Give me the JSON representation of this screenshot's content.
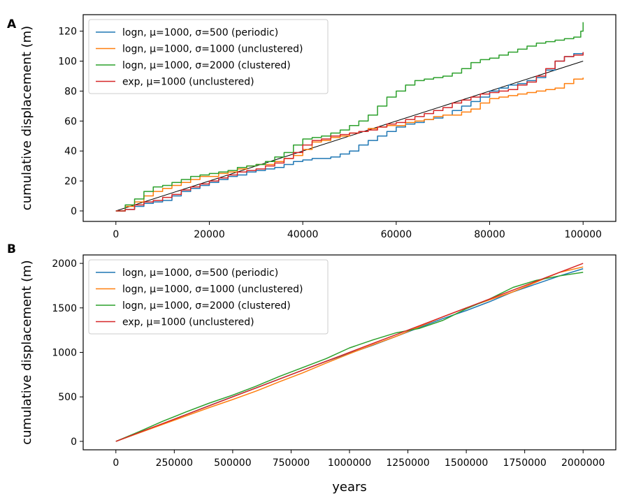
{
  "chart_data": [
    {
      "panel_label": "A",
      "type": "line",
      "title": "",
      "xlabel": "",
      "ylabel": "cumulative displacement (m)",
      "xlim": [
        -7000,
        107000
      ],
      "ylim": [
        -7,
        131
      ],
      "x_ticks": [
        0,
        20000,
        40000,
        60000,
        80000,
        100000
      ],
      "y_ticks": [
        0,
        20,
        40,
        60,
        80,
        100,
        120
      ],
      "grid": false,
      "legend_position": "top-left",
      "reference_line": {
        "x": [
          0,
          100000
        ],
        "y": [
          0,
          100
        ],
        "color": "#000000"
      },
      "series": [
        {
          "name": "logn, μ=1000, σ=500 (periodic)",
          "color": "#1f77b4",
          "step": true,
          "x": [
            0,
            2000,
            4000,
            6000,
            8000,
            10000,
            12000,
            14000,
            16000,
            18000,
            20000,
            22000,
            24000,
            26000,
            28000,
            30000,
            32000,
            34000,
            36000,
            38000,
            40000,
            42000,
            44000,
            46000,
            48000,
            50000,
            52000,
            54000,
            56000,
            58000,
            60000,
            62000,
            64000,
            66000,
            68000,
            70000,
            72000,
            74000,
            76000,
            78000,
            80000,
            82000,
            84000,
            86000,
            88000,
            90000,
            92000,
            94000,
            96000,
            98000,
            100000
          ],
          "y": [
            0,
            1,
            3,
            5,
            6,
            7,
            10,
            13,
            15,
            17,
            19,
            21,
            23,
            24,
            26,
            27,
            28,
            29,
            31,
            33,
            34,
            35,
            35,
            36,
            38,
            40,
            44,
            47,
            50,
            53,
            56,
            58,
            59,
            61,
            62,
            64,
            67,
            70,
            73,
            76,
            80,
            82,
            84,
            85,
            87,
            89,
            94,
            100,
            103,
            105,
            106
          ]
        },
        {
          "name": "logn, μ=1000, σ=1000 (unclustered)",
          "color": "#ff7f0e",
          "step": true,
          "x": [
            0,
            2000,
            4000,
            6000,
            8000,
            10000,
            12000,
            14000,
            16000,
            18000,
            20000,
            22000,
            24000,
            26000,
            28000,
            30000,
            32000,
            34000,
            36000,
            38000,
            40000,
            42000,
            44000,
            46000,
            48000,
            50000,
            52000,
            54000,
            56000,
            58000,
            60000,
            62000,
            64000,
            66000,
            68000,
            70000,
            72000,
            74000,
            76000,
            78000,
            80000,
            82000,
            84000,
            86000,
            88000,
            90000,
            92000,
            94000,
            96000,
            98000,
            100000
          ],
          "y": [
            0,
            3,
            6,
            10,
            13,
            15,
            17,
            19,
            21,
            23,
            23,
            25,
            26,
            28,
            30,
            31,
            31,
            33,
            35,
            37,
            41,
            46,
            47,
            49,
            50,
            52,
            53,
            55,
            56,
            57,
            57,
            59,
            60,
            61,
            63,
            64,
            64,
            66,
            68,
            72,
            75,
            76,
            77,
            78,
            79,
            80,
            81,
            82,
            85,
            88,
            89
          ]
        },
        {
          "name": "logn, μ=1000, σ=2000 (clustered)",
          "color": "#2ca02c",
          "step": true,
          "x": [
            0,
            2000,
            4000,
            6000,
            8000,
            10000,
            12000,
            14000,
            16000,
            18000,
            20000,
            22000,
            24000,
            26000,
            28000,
            30000,
            32000,
            34000,
            36000,
            38000,
            40000,
            42000,
            44000,
            46000,
            48000,
            50000,
            52000,
            54000,
            56000,
            58000,
            60000,
            62000,
            64000,
            66000,
            68000,
            70000,
            72000,
            74000,
            76000,
            78000,
            80000,
            82000,
            84000,
            86000,
            88000,
            90000,
            92000,
            94000,
            96000,
            98000,
            99500,
            100000
          ],
          "y": [
            0,
            4,
            8,
            13,
            16,
            17,
            19,
            21,
            23,
            24,
            25,
            26,
            27,
            29,
            30,
            31,
            33,
            36,
            39,
            44,
            48,
            49,
            50,
            52,
            54,
            57,
            60,
            64,
            70,
            76,
            80,
            84,
            87,
            88,
            89,
            90,
            92,
            95,
            99,
            101,
            102,
            104,
            106,
            108,
            110,
            112,
            113,
            114,
            115,
            116,
            120,
            126
          ]
        },
        {
          "name": "exp, μ=1000 (unclustered)",
          "color": "#d62728",
          "step": true,
          "x": [
            0,
            2000,
            4000,
            6000,
            8000,
            10000,
            12000,
            14000,
            16000,
            18000,
            20000,
            22000,
            24000,
            26000,
            28000,
            30000,
            32000,
            34000,
            36000,
            38000,
            40000,
            42000,
            44000,
            46000,
            48000,
            50000,
            52000,
            54000,
            56000,
            58000,
            60000,
            62000,
            64000,
            66000,
            68000,
            70000,
            72000,
            74000,
            76000,
            78000,
            80000,
            82000,
            84000,
            86000,
            88000,
            90000,
            92000,
            94000,
            96000,
            98000,
            100000
          ],
          "y": [
            0,
            1,
            4,
            6,
            7,
            9,
            11,
            14,
            16,
            18,
            20,
            22,
            24,
            26,
            27,
            28,
            30,
            32,
            35,
            39,
            44,
            47,
            48,
            50,
            51,
            52,
            53,
            54,
            56,
            58,
            59,
            61,
            63,
            65,
            67,
            69,
            72,
            74,
            76,
            78,
            79,
            80,
            81,
            84,
            86,
            90,
            95,
            100,
            103,
            104,
            106
          ]
        }
      ]
    },
    {
      "panel_label": "B",
      "type": "line",
      "title": "",
      "xlabel": "years",
      "ylabel": "cumulative displacement (m)",
      "xlim": [
        -140000,
        2140000
      ],
      "ylim": [
        -95,
        2095
      ],
      "x_ticks": [
        0,
        250000,
        500000,
        750000,
        1000000,
        1250000,
        1500000,
        1750000,
        2000000
      ],
      "y_ticks": [
        0,
        500,
        1000,
        1500,
        2000
      ],
      "grid": false,
      "legend_position": "top-left",
      "series": [
        {
          "name": "logn, μ=1000, σ=500 (periodic)",
          "color": "#1f77b4",
          "step": false,
          "x": [
            0,
            100000,
            200000,
            300000,
            400000,
            500000,
            600000,
            700000,
            800000,
            900000,
            1000000,
            1100000,
            1200000,
            1300000,
            1400000,
            1500000,
            1600000,
            1700000,
            1800000,
            1900000,
            2000000
          ],
          "y": [
            0,
            98,
            198,
            300,
            402,
            502,
            600,
            700,
            800,
            900,
            990,
            1080,
            1180,
            1280,
            1380,
            1470,
            1570,
            1680,
            1770,
            1860,
            1940
          ]
        },
        {
          "name": "logn, μ=1000, σ=1000 (unclustered)",
          "color": "#ff7f0e",
          "step": false,
          "x": [
            0,
            100000,
            200000,
            300000,
            400000,
            500000,
            600000,
            700000,
            800000,
            900000,
            1000000,
            1100000,
            1200000,
            1300000,
            1400000,
            1500000,
            1600000,
            1700000,
            1800000,
            1900000,
            2000000
          ],
          "y": [
            0,
            95,
            190,
            285,
            380,
            470,
            565,
            670,
            770,
            880,
            985,
            1085,
            1180,
            1290,
            1400,
            1500,
            1590,
            1680,
            1790,
            1900,
            1960
          ]
        },
        {
          "name": "logn, μ=1000, σ=2000 (clustered)",
          "color": "#2ca02c",
          "step": false,
          "x": [
            0,
            100000,
            200000,
            300000,
            400000,
            500000,
            600000,
            700000,
            800000,
            900000,
            1000000,
            1100000,
            1200000,
            1300000,
            1400000,
            1500000,
            1600000,
            1700000,
            1800000,
            1900000,
            2000000
          ],
          "y": [
            0,
            110,
            225,
            330,
            430,
            520,
            620,
            730,
            830,
            930,
            1050,
            1140,
            1220,
            1270,
            1360,
            1490,
            1600,
            1730,
            1810,
            1860,
            1900
          ]
        },
        {
          "name": "exp, μ=1000 (unclustered)",
          "color": "#d62728",
          "step": false,
          "x": [
            0,
            100000,
            200000,
            300000,
            400000,
            500000,
            600000,
            700000,
            800000,
            900000,
            1000000,
            1100000,
            1200000,
            1300000,
            1400000,
            1500000,
            1600000,
            1700000,
            1800000,
            1900000,
            2000000
          ],
          "y": [
            0,
            100,
            200,
            300,
            400,
            500,
            600,
            700,
            800,
            900,
            1000,
            1100,
            1200,
            1300,
            1400,
            1500,
            1600,
            1700,
            1800,
            1900,
            2000
          ]
        }
      ]
    }
  ]
}
